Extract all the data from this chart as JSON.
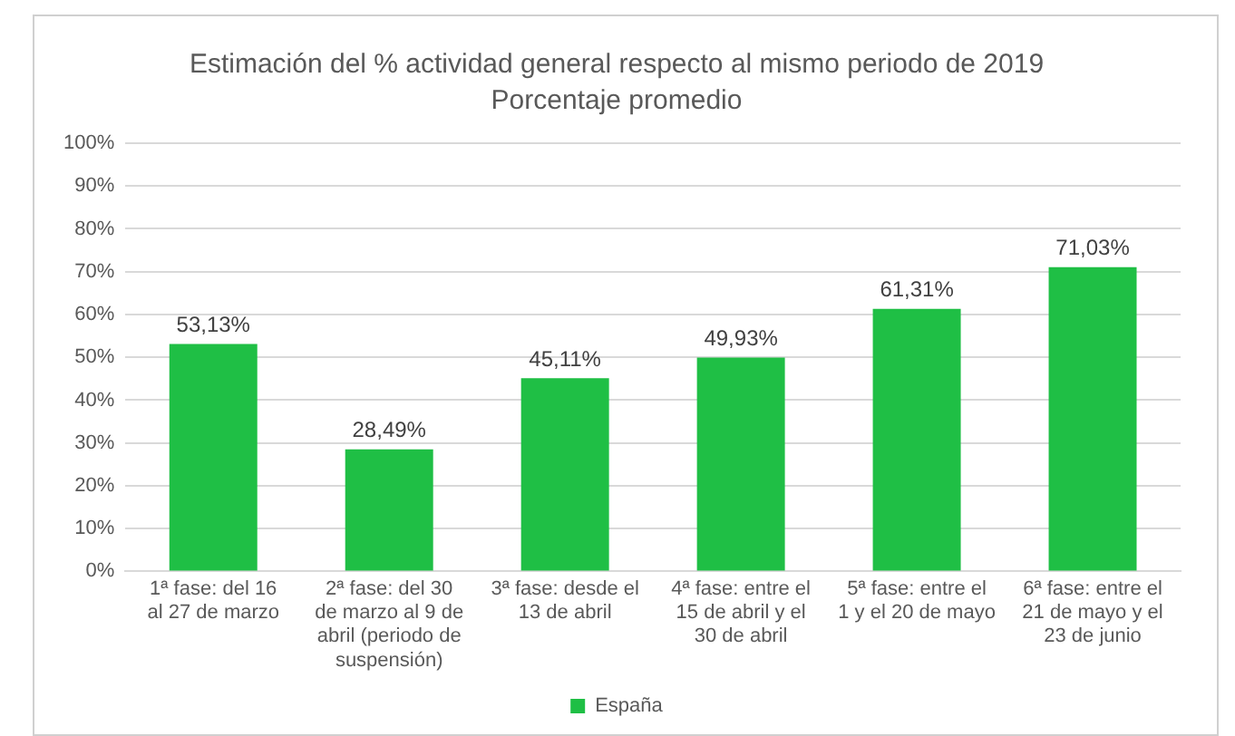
{
  "chart_data": {
    "type": "bar",
    "title": "Estimación del % actividad general respecto al mismo periodo de 2019",
    "subtitle": "Porcentaje promedio",
    "categories": [
      "1ª fase: del 16 al 27 de marzo",
      "2ª fase: del 30 de marzo al 9 de abril (periodo de suspensión)",
      "3ª fase: desde el 13 de abril",
      "4ª fase: entre el 15 de abril y el 30 de abril",
      "5ª fase: entre el 1 y el 20 de mayo",
      "6ª fase: entre el 21 de mayo y el 23 de junio"
    ],
    "series": [
      {
        "name": "España",
        "color": "#1fbf45",
        "values": [
          53.13,
          28.49,
          45.11,
          49.93,
          61.31,
          71.03
        ],
        "value_labels": [
          "53,13%",
          "28,49%",
          "45,11%",
          "49,93%",
          "61,31%",
          "71,03%"
        ]
      }
    ],
    "ylim": [
      0,
      100
    ],
    "yticks": [
      {
        "value": 0,
        "label": "0%"
      },
      {
        "value": 10,
        "label": "10%"
      },
      {
        "value": 20,
        "label": "20%"
      },
      {
        "value": 30,
        "label": "30%"
      },
      {
        "value": 40,
        "label": "40%"
      },
      {
        "value": 50,
        "label": "50%"
      },
      {
        "value": 60,
        "label": "60%"
      },
      {
        "value": 70,
        "label": "70%"
      },
      {
        "value": 80,
        "label": "80%"
      },
      {
        "value": 90,
        "label": "90%"
      },
      {
        "value": 100,
        "label": "100%"
      }
    ],
    "grid": "y",
    "legend": "bottom"
  }
}
